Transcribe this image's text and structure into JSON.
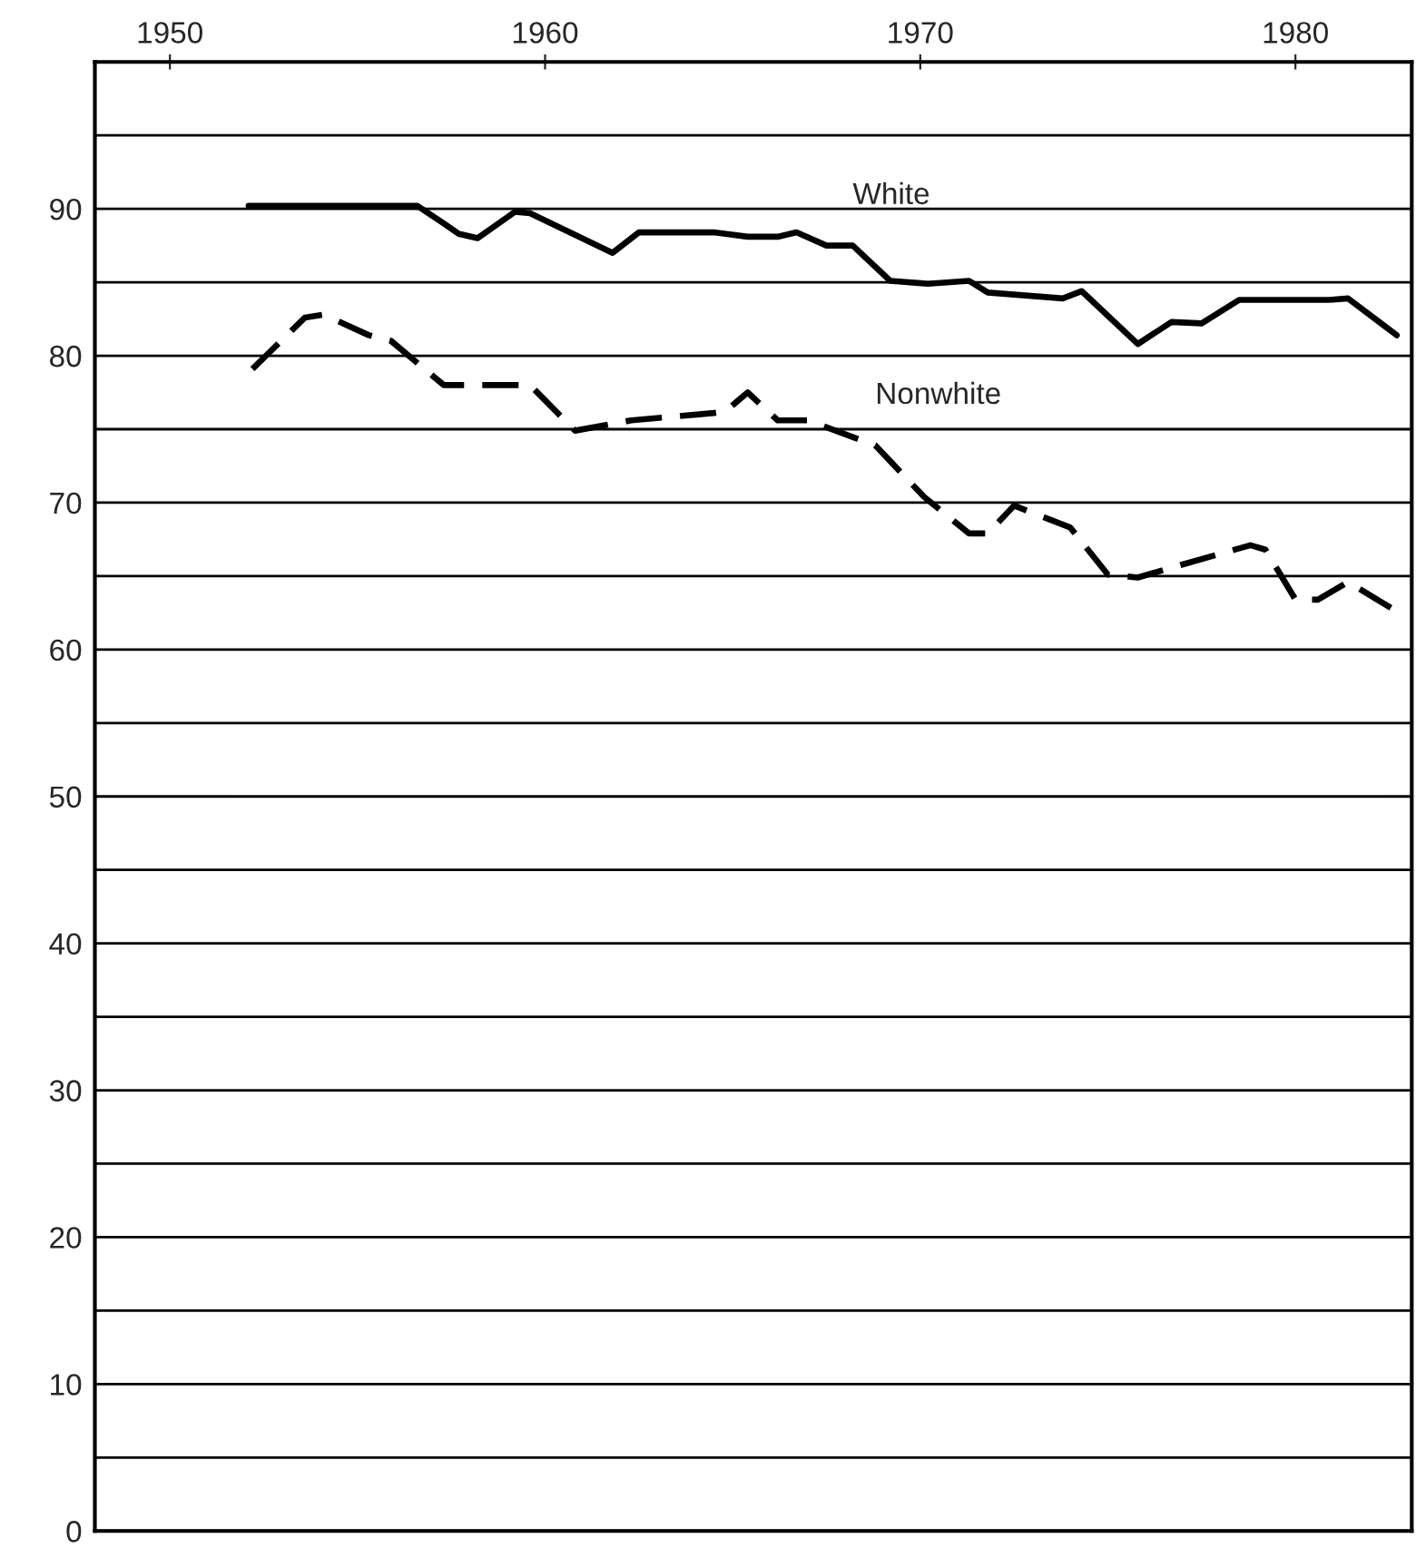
{
  "chart_data": {
    "type": "line",
    "xlim": [
      1948,
      1983.1
    ],
    "xticks": [
      1950,
      1960,
      1970,
      1980
    ],
    "ylim": [
      0,
      100
    ],
    "yticks": [
      0,
      {
        "value": 5,
        "label": null
      },
      10,
      {
        "value": 15,
        "label": null
      },
      20,
      {
        "value": 25,
        "label": null
      },
      30,
      {
        "value": 35,
        "label": null
      },
      40,
      {
        "value": 45,
        "label": null
      },
      50,
      {
        "value": 55,
        "label": null
      },
      60,
      {
        "value": 65,
        "label": null
      },
      70,
      {
        "value": 75,
        "label": null
      },
      80,
      {
        "value": 85,
        "label": null
      },
      90,
      {
        "value": 95,
        "label": null
      }
    ],
    "grid": "y",
    "legend": false,
    "marker": "none",
    "series": [
      {
        "name": "White",
        "color": "#000000",
        "line_style": "solid",
        "x": [
          1952.1,
          1956.6,
          1957.3,
          1957.7,
          1958.2,
          1959.2,
          1959.6,
          1961.8,
          1962.5,
          1964.5,
          1965.4,
          1966.2,
          1966.7,
          1967.5,
          1968.2,
          1969.2,
          1970.2,
          1971.3,
          1971.8,
          1973.8,
          1974.3,
          1975.8,
          1976.7,
          1977.5,
          1978.5,
          1980.9,
          1981.4,
          1982.7
        ],
        "values": [
          90.2,
          90.2,
          89,
          88.3,
          88,
          89.8,
          89.7,
          87,
          88.4,
          88.4,
          88.1,
          88.1,
          88.4,
          87.5,
          87.5,
          85.1,
          84.9,
          85.1,
          84.3,
          83.9,
          84.4,
          80.8,
          82.3,
          82.2,
          83.8,
          83.8,
          83.9,
          81.4
        ]
      },
      {
        "name": "Nonwhite",
        "color": "#000000",
        "line_style": "dashed",
        "x": [
          1952.2,
          1953.6,
          1954.1,
          1955.3,
          1955.9,
          1957.3,
          1959.6,
          1960.8,
          1962.3,
          1964.5,
          1964.8,
          1965.4,
          1966.2,
          1967,
          1968.8,
          1970.1,
          1971.3,
          1971.8,
          1972.5,
          1974,
          1975,
          1975.8,
          1977,
          1978.8,
          1979.2,
          1980,
          1980.6,
          1981.4,
          1982.7
        ],
        "values": [
          79.1,
          82.6,
          82.8,
          81.4,
          81,
          78,
          78,
          74.9,
          75.6,
          76.1,
          76.2,
          77.5,
          75.6,
          75.6,
          73.9,
          70.4,
          67.9,
          67.9,
          69.8,
          68.3,
          65.1,
          64.9,
          65.8,
          67.1,
          66.8,
          63.4,
          63.4,
          64.6,
          62.6
        ]
      }
    ]
  }
}
